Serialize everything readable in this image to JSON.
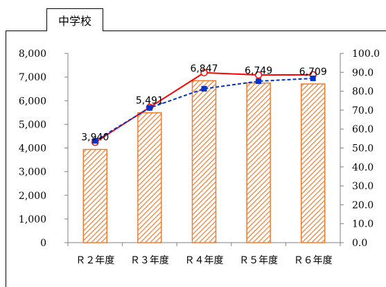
{
  "tab": {
    "label": "中学校"
  },
  "colors": {
    "bar_stroke": "#ed7d31",
    "bar_hatch": "#ed7d31",
    "line1": "#ff0000",
    "line2": "#0033cc",
    "axis": "#808080"
  },
  "chart_data": {
    "type": "bar",
    "categories": [
      "Ｒ２年度",
      "Ｒ３年度",
      "Ｒ４年度",
      "Ｒ５年度",
      "Ｒ６年度"
    ],
    "series": [
      {
        "values": [
          3940,
          5491,
          6847,
          6749,
          6709
        ],
        "axis": "left",
        "kind": "bar",
        "labels": [
          "3,940",
          "5,491",
          "6,847",
          "6,749",
          "6,709"
        ]
      },
      {
        "values": [
          53.0,
          71.5,
          89.8,
          88.6,
          88.7
        ],
        "axis": "right",
        "kind": "line",
        "marker": "circle-open",
        "style": "solid"
      },
      {
        "values": [
          53.8,
          71.2,
          81.3,
          85.3,
          86.8
        ],
        "axis": "right",
        "kind": "line",
        "marker": "square",
        "style": "dashed"
      }
    ],
    "ylim": [
      0,
      8000
    ],
    "y_ticks": [
      "0",
      "1,000",
      "2,000",
      "3,000",
      "4,000",
      "5,000",
      "6,000",
      "7,000",
      "8,000"
    ],
    "y2lim": [
      0,
      100
    ],
    "y2_ticks": [
      "0.0",
      "10.0",
      "20.0",
      "30.0",
      "40.0",
      "50.0",
      "60.0",
      "70.0",
      "80.0",
      "90.0",
      "100.0"
    ],
    "grid": false,
    "legend": "none"
  }
}
